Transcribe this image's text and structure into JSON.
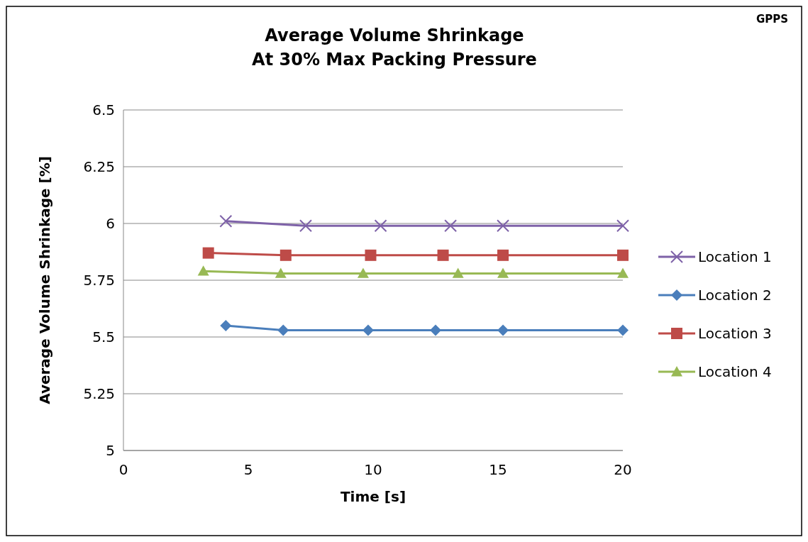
{
  "chart_data": {
    "type": "line",
    "title": "Average Volume Shrinkage\nAt 30% Max Packing Pressure",
    "xlabel": "Time [s]",
    "ylabel": "Average Volume Shrinkage [%]",
    "annotations": [
      "GPPS"
    ],
    "xlim": [
      0,
      20
    ],
    "xticks": [
      0,
      5,
      10,
      15,
      20
    ],
    "ylim": [
      5,
      6.5
    ],
    "yticks": [
      5,
      5.25,
      5.5,
      5.75,
      6,
      6.25,
      6.5
    ],
    "grid": "y",
    "legend": "right",
    "line_style": "solid",
    "series": [
      {
        "name": "Location 1",
        "color": "#7e62a8",
        "marker": "cross",
        "x": [
          4.1,
          7.3,
          10.3,
          13.1,
          15.2,
          20
        ],
        "values": [
          6.01,
          5.99,
          5.99,
          5.99,
          5.99,
          5.99
        ]
      },
      {
        "name": "Location 2",
        "color": "#4a7ebb",
        "marker": "diamond",
        "x": [
          4.1,
          6.4,
          9.8,
          12.5,
          15.2,
          20
        ],
        "values": [
          5.55,
          5.53,
          5.53,
          5.53,
          5.53,
          5.53
        ]
      },
      {
        "name": "Location 3",
        "color": "#be4b48",
        "marker": "square",
        "x": [
          3.4,
          6.5,
          9.9,
          12.8,
          15.2,
          20
        ],
        "values": [
          5.87,
          5.86,
          5.86,
          5.86,
          5.86,
          5.86
        ]
      },
      {
        "name": "Location 4",
        "color": "#98b954",
        "marker": "triangle",
        "x": [
          3.2,
          6.3,
          9.6,
          13.4,
          15.2,
          20
        ],
        "values": [
          5.79,
          5.78,
          5.78,
          5.78,
          5.78,
          5.78
        ]
      }
    ]
  }
}
